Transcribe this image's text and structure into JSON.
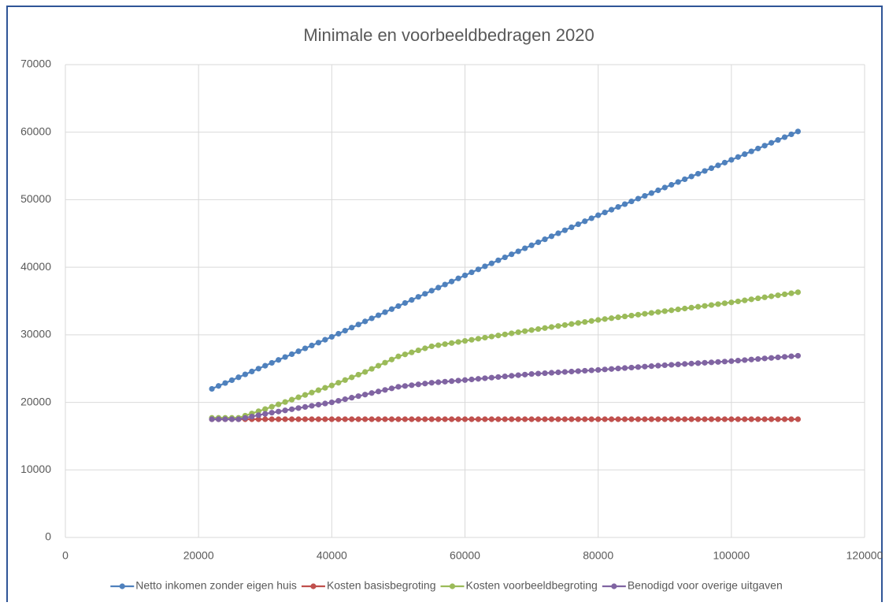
{
  "chart_data": {
    "type": "line",
    "title": "Minimale en voorbeeldbedragen 2020",
    "x": [
      22000,
      23000,
      24000,
      25000,
      26000,
      27000,
      28000,
      29000,
      30000,
      31000,
      32000,
      33000,
      34000,
      35000,
      36000,
      37000,
      38000,
      39000,
      40000,
      41000,
      42000,
      43000,
      44000,
      45000,
      46000,
      47000,
      48000,
      49000,
      50000,
      51000,
      52000,
      53000,
      54000,
      55000,
      56000,
      57000,
      58000,
      59000,
      60000,
      61000,
      62000,
      63000,
      64000,
      65000,
      66000,
      67000,
      68000,
      69000,
      70000,
      71000,
      72000,
      73000,
      74000,
      75000,
      76000,
      77000,
      78000,
      79000,
      80000,
      81000,
      82000,
      83000,
      84000,
      85000,
      86000,
      87000,
      88000,
      89000,
      90000,
      91000,
      92000,
      93000,
      94000,
      95000,
      96000,
      97000,
      98000,
      99000,
      100000,
      101000,
      102000,
      103000,
      104000,
      105000,
      106000,
      107000,
      108000,
      109000,
      110000
    ],
    "series": [
      {
        "name": "Netto inkomen zonder eigen huis",
        "color": "#4f81bd",
        "values": [
          22000,
          22430,
          22860,
          23280,
          23710,
          24140,
          24570,
          24990,
          25420,
          25850,
          26280,
          26710,
          27130,
          27560,
          27990,
          28420,
          28840,
          29270,
          29700,
          30160,
          30610,
          31070,
          31520,
          31980,
          32440,
          32890,
          33350,
          33800,
          34250,
          34710,
          35160,
          35620,
          36070,
          36530,
          36980,
          37440,
          37890,
          38350,
          38800,
          39250,
          39690,
          40140,
          40580,
          41030,
          41470,
          41920,
          42360,
          42810,
          43250,
          43700,
          44140,
          44590,
          45030,
          45480,
          45920,
          46370,
          46810,
          47260,
          47700,
          48110,
          48520,
          48930,
          49340,
          49750,
          50160,
          50570,
          50980,
          51390,
          51800,
          52210,
          52620,
          53030,
          53440,
          53850,
          54260,
          54670,
          55080,
          55490,
          55900,
          56320,
          56740,
          57160,
          57580,
          58000,
          58420,
          58840,
          59260,
          59680,
          60100
        ]
      },
      {
        "name": "Kosten basisbegroting",
        "color": "#c0504d",
        "values": [
          17500,
          17500,
          17500,
          17500,
          17500,
          17500,
          17500,
          17500,
          17500,
          17500,
          17500,
          17500,
          17500,
          17500,
          17500,
          17500,
          17500,
          17500,
          17500,
          17500,
          17500,
          17500,
          17500,
          17500,
          17500,
          17500,
          17500,
          17500,
          17500,
          17500,
          17500,
          17500,
          17500,
          17500,
          17500,
          17500,
          17500,
          17500,
          17500,
          17500,
          17500,
          17500,
          17500,
          17500,
          17500,
          17500,
          17500,
          17500,
          17500,
          17500,
          17500,
          17500,
          17500,
          17500,
          17500,
          17500,
          17500,
          17500,
          17500,
          17500,
          17500,
          17500,
          17500,
          17500,
          17500,
          17500,
          17500,
          17500,
          17500,
          17500,
          17500,
          17500,
          17500,
          17500,
          17500,
          17500,
          17500,
          17500,
          17500,
          17500,
          17500,
          17500,
          17500,
          17500,
          17500,
          17500,
          17500,
          17500,
          17500
        ]
      },
      {
        "name": "Kosten voorbeeldbegroting",
        "color": "#9bbb59",
        "values": [
          17700,
          17700,
          17700,
          17700,
          17700,
          18030,
          18350,
          18680,
          19000,
          19350,
          19700,
          20050,
          20400,
          20750,
          21100,
          21450,
          21800,
          22150,
          22500,
          22900,
          23300,
          23700,
          24100,
          24500,
          24960,
          25420,
          25880,
          26340,
          26800,
          27100,
          27400,
          27700,
          28000,
          28300,
          28460,
          28620,
          28780,
          28940,
          29100,
          29260,
          29420,
          29580,
          29740,
          29900,
          30060,
          30220,
          30380,
          30540,
          30700,
          30850,
          31000,
          31150,
          31300,
          31450,
          31600,
          31750,
          31900,
          32050,
          32200,
          32330,
          32460,
          32590,
          32720,
          32850,
          32980,
          33110,
          33240,
          33370,
          33500,
          33630,
          33760,
          33890,
          34020,
          34150,
          34280,
          34410,
          34540,
          34670,
          34800,
          34950,
          35100,
          35250,
          35400,
          35550,
          35700,
          35850,
          36000,
          36150,
          36300
        ]
      },
      {
        "name": "Benodigd voor overige uitgaven",
        "color": "#8064a2",
        "values": [
          17500,
          17500,
          17500,
          17500,
          17500,
          17700,
          17900,
          18100,
          18300,
          18470,
          18640,
          18810,
          18980,
          19150,
          19320,
          19490,
          19660,
          19830,
          20000,
          20230,
          20460,
          20690,
          20920,
          21150,
          21380,
          21610,
          21840,
          22070,
          22300,
          22420,
          22540,
          22660,
          22780,
          22900,
          22980,
          23060,
          23140,
          23220,
          23300,
          23390,
          23480,
          23570,
          23660,
          23750,
          23840,
          23930,
          24020,
          24110,
          24200,
          24260,
          24320,
          24380,
          24440,
          24500,
          24560,
          24620,
          24680,
          24740,
          24800,
          24870,
          24940,
          25010,
          25080,
          25150,
          25220,
          25290,
          25360,
          25430,
          25500,
          25560,
          25620,
          25680,
          25740,
          25800,
          25860,
          25920,
          25980,
          26040,
          26100,
          26180,
          26260,
          26340,
          26420,
          26500,
          26580,
          26660,
          26740,
          26820,
          26900
        ]
      }
    ],
    "xlim": [
      0,
      120000
    ],
    "xticks": [
      0,
      20000,
      40000,
      60000,
      80000,
      100000,
      120000
    ],
    "ylim": [
      0,
      70000
    ],
    "yticks": [
      0,
      10000,
      20000,
      30000,
      40000,
      50000,
      60000,
      70000
    ],
    "grid": true,
    "legend": "bottom"
  }
}
